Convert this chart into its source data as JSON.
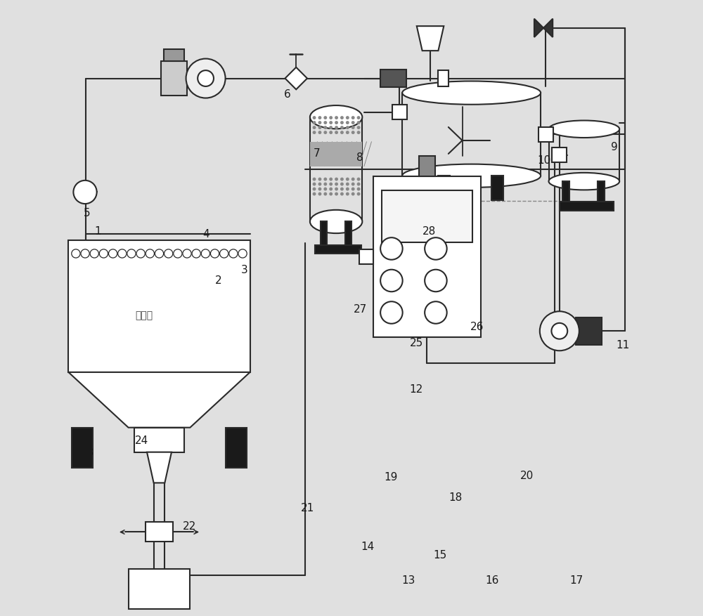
{
  "bg_color": "#e0e0e0",
  "line_color": "#2a2a2a",
  "fig_w": 10.0,
  "fig_h": 8.78
}
